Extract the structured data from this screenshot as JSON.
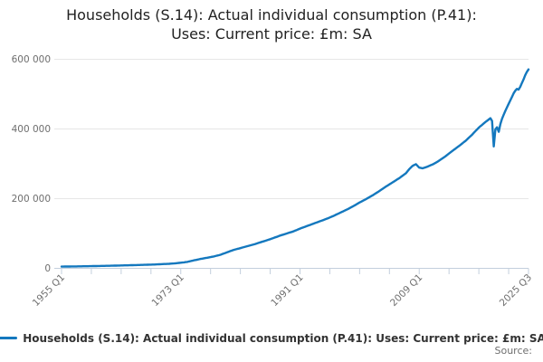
{
  "title": {
    "line1": "Households (S.14): Actual individual consumption (P.41):",
    "line2": "Uses: Current price: £m: SA"
  },
  "legend": {
    "label": "Households (S.14): Actual individual consumption (P.41): Uses: Current price: £m: SA"
  },
  "source_label": "Source:",
  "colors": {
    "line": "#1478be",
    "grid": "#e6e6e6",
    "axis": "#c3cfdd",
    "tick_text": "#6e6e6e",
    "title_text": "#222222",
    "legend_text": "#333333",
    "source_text": "#6e6e6e",
    "background": "#ffffff"
  },
  "chart_data": {
    "type": "line",
    "title": "Households (S.14): Actual individual consumption (P.41): Uses: Current price: £m: SA",
    "unit": "£m",
    "frequency": "quarterly",
    "grid": true,
    "legend_position": "bottom",
    "x_axis": {
      "start": "1955 Q1",
      "end": "2025 Q3",
      "tick_labels": [
        "1955 Q1",
        "1973 Q1",
        "1991 Q1",
        "2009 Q1",
        "2025 Q3"
      ],
      "label_rotation_deg": -45
    },
    "y_axis": {
      "min": 0,
      "max": 600000,
      "tick_values": [
        0,
        200000,
        400000,
        600000
      ],
      "tick_labels": [
        "0",
        "200 000",
        "400 000",
        "600 000"
      ]
    },
    "points": [
      [
        "1955 Q1",
        5000
      ],
      [
        "1957 Q1",
        5500
      ],
      [
        "1959 Q1",
        6100
      ],
      [
        "1961 Q1",
        6900
      ],
      [
        "1963 Q1",
        7700
      ],
      [
        "1965 Q1",
        8700
      ],
      [
        "1967 Q1",
        9800
      ],
      [
        "1969 Q1",
        11000
      ],
      [
        "1971 Q1",
        12800
      ],
      [
        "1972 Q1",
        14000
      ],
      [
        "1973 Q1",
        16000
      ],
      [
        "1974 Q1",
        18500
      ],
      [
        "1975 Q1",
        23000
      ],
      [
        "1976 Q1",
        27000
      ],
      [
        "1977 Q1",
        30500
      ],
      [
        "1978 Q1",
        34000
      ],
      [
        "1979 Q1",
        39000
      ],
      [
        "1980 Q1",
        46000
      ],
      [
        "1981 Q1",
        53000
      ],
      [
        "1982 Q1",
        58000
      ],
      [
        "1983 Q1",
        63500
      ],
      [
        "1984 Q1",
        68500
      ],
      [
        "1985 Q1",
        74500
      ],
      [
        "1986 Q1",
        80500
      ],
      [
        "1987 Q1",
        87000
      ],
      [
        "1988 Q1",
        94000
      ],
      [
        "1989 Q1",
        100000
      ],
      [
        "1990 Q1",
        106000
      ],
      [
        "1991 Q1",
        114000
      ],
      [
        "1992 Q1",
        121000
      ],
      [
        "1993 Q1",
        128000
      ],
      [
        "1994 Q1",
        135000
      ],
      [
        "1995 Q1",
        142000
      ],
      [
        "1996 Q1",
        150000
      ],
      [
        "1997 Q1",
        159000
      ],
      [
        "1998 Q1",
        168000
      ],
      [
        "1999 Q1",
        178000
      ],
      [
        "2000 Q1",
        189000
      ],
      [
        "2001 Q1",
        199000
      ],
      [
        "2002 Q1",
        210000
      ],
      [
        "2003 Q1",
        222000
      ],
      [
        "2004 Q1",
        235000
      ],
      [
        "2005 Q1",
        247000
      ],
      [
        "2006 Q1",
        259000
      ],
      [
        "2007 Q1",
        273000
      ],
      [
        "2007 Q3",
        285000
      ],
      [
        "2008 Q1",
        294000
      ],
      [
        "2008 Q3",
        299000
      ],
      [
        "2009 Q1",
        289000
      ],
      [
        "2009 Q3",
        287000
      ],
      [
        "2010 Q1",
        290000
      ],
      [
        "2010 Q3",
        294000
      ],
      [
        "2011 Q1",
        298000
      ],
      [
        "2011 Q3",
        303000
      ],
      [
        "2012 Q1",
        309000
      ],
      [
        "2013 Q1",
        322000
      ],
      [
        "2014 Q1",
        337000
      ],
      [
        "2015 Q1",
        351000
      ],
      [
        "2016 Q1",
        366000
      ],
      [
        "2017 Q1",
        384000
      ],
      [
        "2018 Q1",
        404000
      ],
      [
        "2019 Q1",
        420000
      ],
      [
        "2019 Q4",
        431000
      ],
      [
        "2020 Q1",
        423000
      ],
      [
        "2020 Q2",
        350000
      ],
      [
        "2020 Q3",
        399000
      ],
      [
        "2020 Q4",
        405000
      ],
      [
        "2021 Q1",
        392000
      ],
      [
        "2021 Q2",
        414000
      ],
      [
        "2021 Q3",
        429000
      ],
      [
        "2021 Q4",
        441000
      ],
      [
        "2022 Q1",
        452000
      ],
      [
        "2022 Q2",
        462000
      ],
      [
        "2022 Q3",
        472000
      ],
      [
        "2022 Q4",
        482000
      ],
      [
        "2023 Q1",
        492000
      ],
      [
        "2023 Q2",
        502000
      ],
      [
        "2023 Q3",
        510000
      ],
      [
        "2023 Q4",
        515000
      ],
      [
        "2024 Q1",
        513000
      ],
      [
        "2024 Q2",
        521000
      ],
      [
        "2024 Q3",
        532000
      ],
      [
        "2024 Q4",
        542000
      ],
      [
        "2025 Q1",
        554000
      ],
      [
        "2025 Q2",
        564000
      ],
      [
        "2025 Q3",
        571000
      ]
    ]
  }
}
